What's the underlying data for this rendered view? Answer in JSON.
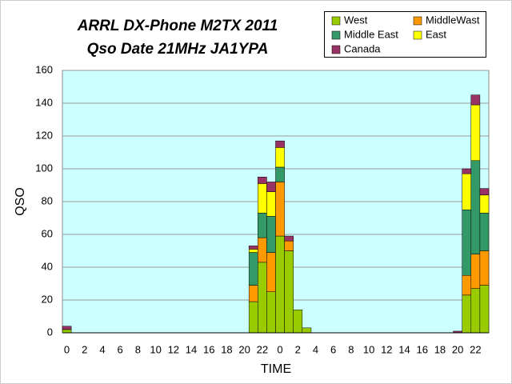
{
  "chart_data": {
    "type": "stacked-bar",
    "title": "ARRL DX-Phone M2TX 2011",
    "subtitle": "Qso Date 21MHz JA1YPA",
    "x_label": "TIME",
    "y_label": "QSO",
    "categories": [
      "0",
      null,
      "2",
      null,
      "4",
      null,
      "6",
      null,
      "8",
      null,
      "10",
      null,
      "12",
      null,
      "14",
      null,
      "16",
      null,
      "18",
      null,
      "20",
      null,
      "22",
      null,
      "0",
      null,
      "2",
      null,
      "4",
      null,
      "6",
      null,
      "8",
      null,
      "10",
      null,
      "12",
      null,
      "14",
      null,
      "16",
      null,
      "18",
      null,
      "20",
      null,
      "22",
      null
    ],
    "series": [
      {
        "name": "West",
        "color": "#99cc00",
        "values": [
          2,
          0,
          0,
          0,
          0,
          0,
          0,
          0,
          0,
          0,
          0,
          0,
          0,
          0,
          0,
          0,
          0,
          0,
          0,
          0,
          0,
          19,
          43,
          25,
          59,
          50,
          14,
          3,
          0,
          0,
          0,
          0,
          0,
          0,
          0,
          0,
          0,
          0,
          0,
          0,
          0,
          0,
          0,
          0,
          0,
          23,
          27,
          29
        ]
      },
      {
        "name": "MiddleWast",
        "color": "#ff9900",
        "values": [
          0,
          0,
          0,
          0,
          0,
          0,
          0,
          0,
          0,
          0,
          0,
          0,
          0,
          0,
          0,
          0,
          0,
          0,
          0,
          0,
          0,
          10,
          15,
          24,
          33,
          6,
          0,
          0,
          0,
          0,
          0,
          0,
          0,
          0,
          0,
          0,
          0,
          0,
          0,
          0,
          0,
          0,
          0,
          0,
          0,
          12,
          21,
          21
        ]
      },
      {
        "name": "Middle East",
        "color": "#339966",
        "values": [
          0,
          0,
          0,
          0,
          0,
          0,
          0,
          0,
          0,
          0,
          0,
          0,
          0,
          0,
          0,
          0,
          0,
          0,
          0,
          0,
          0,
          20,
          15,
          22,
          9,
          0,
          0,
          0,
          0,
          0,
          0,
          0,
          0,
          0,
          0,
          0,
          0,
          0,
          0,
          0,
          0,
          0,
          0,
          0,
          0,
          40,
          57,
          23
        ]
      },
      {
        "name": "East",
        "color": "#ffff00",
        "values": [
          0,
          0,
          0,
          0,
          0,
          0,
          0,
          0,
          0,
          0,
          0,
          0,
          0,
          0,
          0,
          0,
          0,
          0,
          0,
          0,
          0,
          2,
          18,
          15,
          12,
          0,
          0,
          0,
          0,
          0,
          0,
          0,
          0,
          0,
          0,
          0,
          0,
          0,
          0,
          0,
          0,
          0,
          0,
          0,
          0,
          22,
          34,
          11
        ]
      },
      {
        "name": "Canada",
        "color": "#993366",
        "values": [
          2,
          0,
          0,
          0,
          0,
          0,
          0,
          0,
          0,
          0,
          0,
          0,
          0,
          0,
          0,
          0,
          0,
          0,
          0,
          0,
          0,
          2,
          4,
          6,
          4,
          3,
          0,
          0,
          0,
          0,
          0,
          0,
          0,
          0,
          0,
          0,
          0,
          0,
          0,
          0,
          0,
          0,
          0,
          0,
          1,
          3,
          6,
          4
        ]
      }
    ],
    "ylim": [
      0,
      160
    ],
    "yticks": [
      0,
      20,
      40,
      60,
      80,
      100,
      120,
      140,
      160
    ],
    "grid": true,
    "plot_background": "#ccffff"
  }
}
